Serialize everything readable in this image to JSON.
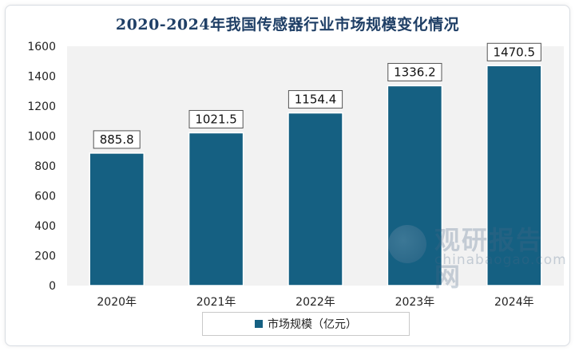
{
  "chart_data": {
    "type": "bar",
    "title": "2020-2024年我国传感器行业市场规模变化情况",
    "categories": [
      "2020年",
      "2021年",
      "2022年",
      "2023年",
      "2024年"
    ],
    "series": [
      {
        "name": "市场规模（亿元）",
        "values": [
          885.8,
          1021.5,
          1154.4,
          1336.2,
          1470.5
        ]
      }
    ],
    "data_labels": [
      "885.8",
      "1021.5",
      "1154.4",
      "1336.2",
      "1470.5"
    ],
    "ylim": [
      0,
      1600
    ],
    "yticks": [
      "0",
      "200",
      "400",
      "600",
      "800",
      "1000",
      "1200",
      "1400",
      "1600"
    ],
    "xlabel": "",
    "ylabel": "",
    "grid": false,
    "legend_position": "bottom",
    "bar_color": "#156082",
    "plot_background": "#f2f2f2"
  },
  "watermark": {
    "cn": "观研报告网",
    "en": "chinabaogao.com",
    "icon": "globe-logo-icon"
  }
}
